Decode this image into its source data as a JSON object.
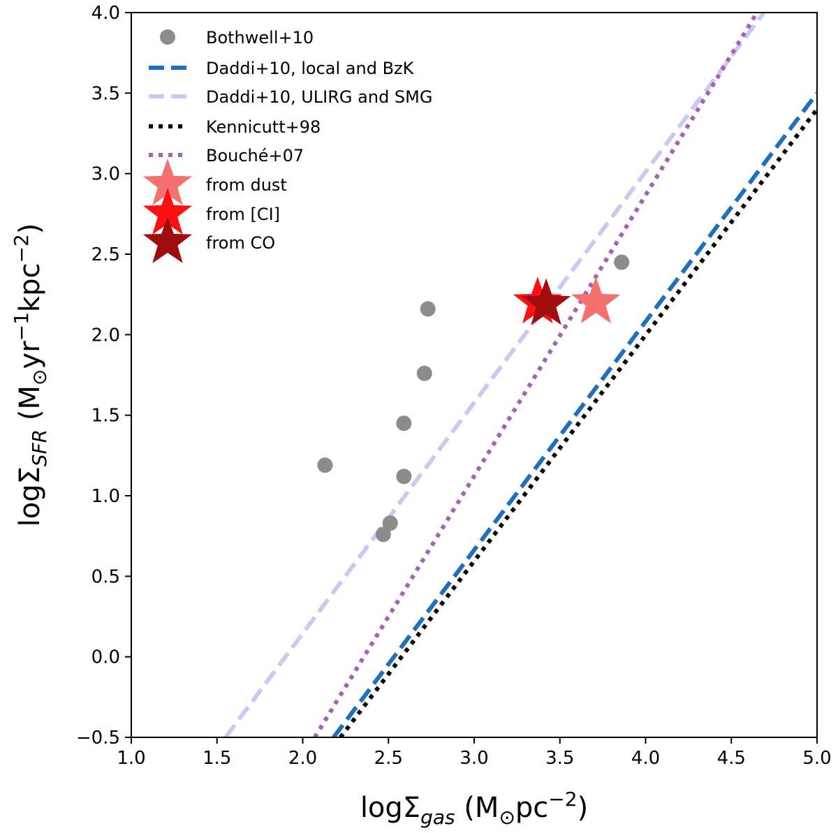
{
  "chart_data": {
    "type": "scatter",
    "xlabel": {
      "prefix": "logΣ",
      "sub": "gas",
      "unit_before": " (M",
      "unit_mid": "⊙",
      "unit_after": "pc",
      "sup": "−2",
      "close": ")"
    },
    "ylabel": {
      "prefix": "logΣ",
      "sub": "SFR",
      "unit_before": " (M",
      "unit_mid": "⊙",
      "unit_after1": "yr",
      "sup1": "−1",
      "unit_after2": "kpc",
      "sup2": "−2",
      "close": ")"
    },
    "xlim": [
      1.0,
      5.0
    ],
    "ylim": [
      -0.5,
      4.0
    ],
    "xticks": [
      "1.0",
      "1.5",
      "2.0",
      "2.5",
      "3.0",
      "3.5",
      "4.0",
      "4.5",
      "5.0"
    ],
    "yticks": [
      "−0.5",
      "0.0",
      "0.5",
      "1.0",
      "1.5",
      "2.0",
      "2.5",
      "3.0",
      "3.5",
      "4.0"
    ],
    "grid": false,
    "legend_placement": "top-left",
    "series": [
      {
        "name": "Bothwell+10",
        "kind": "points",
        "color": "#8c8c8c",
        "points": [
          [
            2.13,
            1.19
          ],
          [
            2.47,
            0.76
          ],
          [
            2.51,
            0.83
          ],
          [
            2.59,
            1.12
          ],
          [
            2.59,
            1.45
          ],
          [
            2.71,
            1.76
          ],
          [
            2.73,
            2.16
          ],
          [
            3.86,
            2.45
          ]
        ]
      },
      {
        "name": "Daddi+10, local and BzK",
        "kind": "dashed-line",
        "color": "#1f6fc1",
        "line": [
          [
            2.18,
            -0.5
          ],
          [
            5.0,
            3.5
          ]
        ]
      },
      {
        "name": "Daddi+10, ULIRG and SMG",
        "kind": "dashed-line",
        "color": "#c9caf4",
        "line": [
          [
            1.55,
            -0.5
          ],
          [
            4.69,
            4.0
          ]
        ]
      },
      {
        "name": "Kennicutt+98",
        "kind": "dotted-line",
        "color": "#000000",
        "line": [
          [
            2.22,
            -0.5
          ],
          [
            5.0,
            3.4
          ]
        ]
      },
      {
        "name": "Bouché+07",
        "kind": "dotted-line",
        "color": "#a461b6",
        "line": [
          [
            2.07,
            -0.5
          ],
          [
            4.65,
            4.0
          ]
        ]
      },
      {
        "name": "from dust",
        "kind": "star",
        "color": "#f5716f",
        "points": [
          [
            3.71,
            2.2
          ]
        ]
      },
      {
        "name": "from [CI]",
        "kind": "star",
        "color": "#ff1010",
        "points": [
          [
            3.37,
            2.2
          ]
        ]
      },
      {
        "name": "from CO",
        "kind": "star",
        "color": "#a00d0d",
        "points": [
          [
            3.42,
            2.19
          ]
        ]
      }
    ]
  }
}
